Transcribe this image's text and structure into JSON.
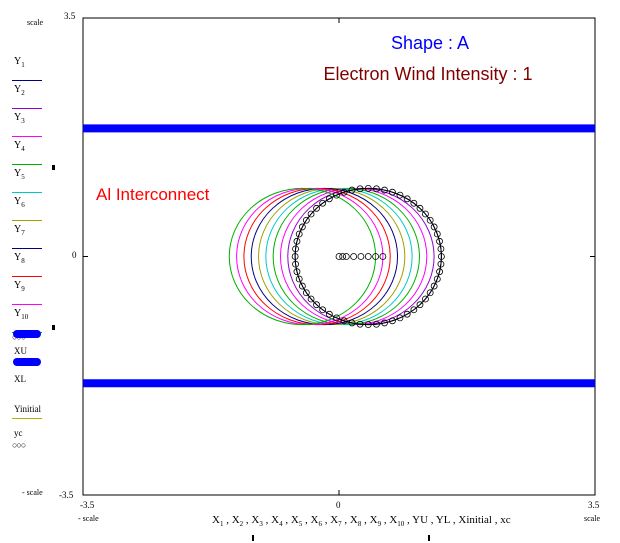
{
  "chart_data": {
    "type": "line",
    "title": "Shape : A",
    "subtitle": "Electron Wind Intensity : 1",
    "annotation": "Al Interconnect",
    "xlim": [
      -3.5,
      3.5
    ],
    "ylim": [
      -3.5,
      3.5
    ],
    "x_ticks": [
      "-3.5",
      "0",
      "3.5"
    ],
    "y_ticks": [
      "3.5",
      "0",
      "-3.5"
    ],
    "x_scale_left": "- scale",
    "x_scale_right": "scale",
    "y_scale_top": "scale",
    "y_scale_bottom": "- scale",
    "xlabel_parts": [
      {
        "base": "X",
        "sub": "1"
      },
      {
        "base": "X",
        "sub": "2"
      },
      {
        "base": "X",
        "sub": "3"
      },
      {
        "base": "X",
        "sub": "4"
      },
      {
        "base": "X",
        "sub": "5"
      },
      {
        "base": "X",
        "sub": "6"
      },
      {
        "base": "X",
        "sub": "7"
      },
      {
        "base": "X",
        "sub": "8"
      },
      {
        "base": "X",
        "sub": "9"
      },
      {
        "base": "X",
        "sub": "10"
      },
      {
        "base": "YU",
        "sub": ""
      },
      {
        "base": "YL",
        "sub": ""
      },
      {
        "base": "Xinitial",
        "sub": ""
      },
      {
        "base": "xc",
        "sub": ""
      }
    ],
    "conductor_bands": {
      "upper_y": 1.88,
      "lower_y": -1.86,
      "thickness": 0.1
    },
    "radius": 1.0,
    "series": [
      {
        "label": "Y",
        "sub": "1",
        "color": "#000080",
        "center_x": 0.4
      },
      {
        "label": "Y",
        "sub": "2",
        "color": "#9400d3",
        "center_x": 0.3
      },
      {
        "label": "Y",
        "sub": "3",
        "color": "#ff00ff",
        "center_x": 0.2
      },
      {
        "label": "Y",
        "sub": "4",
        "color": "#00b000",
        "center_x": 0.1
      },
      {
        "label": "Y",
        "sub": "5",
        "color": "#00c8c8",
        "center_x": 0.0
      },
      {
        "label": "Y",
        "sub": "6",
        "color": "#a0a000",
        "center_x": -0.1
      },
      {
        "label": "Y",
        "sub": "7",
        "color": "#000080",
        "center_x": -0.2
      },
      {
        "label": "Y",
        "sub": "8",
        "color": "#ff0000",
        "center_x": -0.3
      },
      {
        "label": "Y",
        "sub": "9",
        "color": "#ff00ff",
        "center_x": -0.4
      },
      {
        "label": "Y",
        "sub": "10",
        "color": "#00b000",
        "center_x": -0.5
      }
    ],
    "initial_shape": {
      "label": "XU",
      "center_x": 0.4,
      "marker": "circle"
    },
    "upper_legend": "XU",
    "lower_legend": "XL",
    "initial_legend": "Yinitial",
    "centers_legend": "yc",
    "centers_x": [
      0.0,
      0.05,
      0.1,
      0.2,
      0.3,
      0.4,
      0.5,
      0.6
    ],
    "circle_symbol": "○○○"
  }
}
